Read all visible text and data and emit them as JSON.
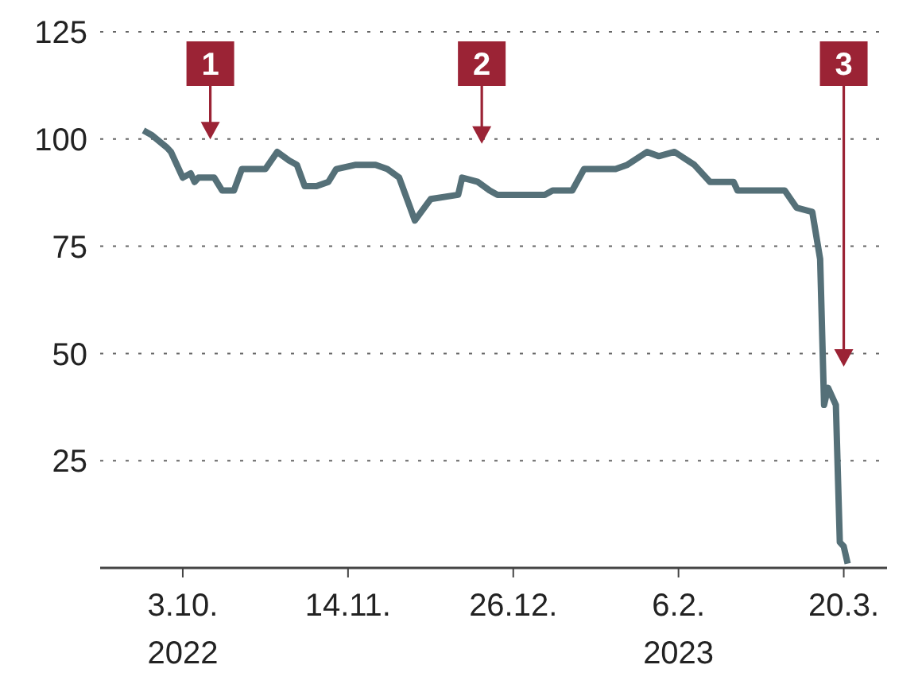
{
  "chart_data": {
    "type": "line",
    "x": [
      "2022-09-23",
      "2022-09-25",
      "2022-09-29",
      "2022-09-30",
      "2022-10-03",
      "2022-10-05",
      "2022-10-06",
      "2022-10-07",
      "2022-10-11",
      "2022-10-13",
      "2022-10-16",
      "2022-10-18",
      "2022-10-24",
      "2022-10-27",
      "2022-10-30",
      "2022-11-01",
      "2022-11-03",
      "2022-11-06",
      "2022-11-09",
      "2022-11-11",
      "2022-11-16",
      "2022-11-18",
      "2022-11-21",
      "2022-11-24",
      "2022-11-27",
      "2022-12-01",
      "2022-12-05",
      "2022-12-12",
      "2022-12-13",
      "2022-12-17",
      "2022-12-20",
      "2022-12-22",
      "2022-12-25",
      "2022-12-29",
      "2023-01-03",
      "2023-01-05",
      "2023-01-10",
      "2023-01-13",
      "2023-01-21",
      "2023-01-24",
      "2023-01-29",
      "2023-02-01",
      "2023-02-05",
      "2023-02-10",
      "2023-02-14",
      "2023-02-20",
      "2023-02-21",
      "2023-03-05",
      "2023-03-08",
      "2023-03-12",
      "2023-03-14",
      "2023-03-15",
      "2023-03-16",
      "2023-03-18",
      "2023-03-19",
      "2023-03-20",
      "2023-03-21"
    ],
    "series": [
      {
        "color": "#557078",
        "values": [
          102,
          101,
          98,
          97,
          91,
          92,
          90,
          91,
          91,
          88,
          88,
          93,
          93,
          97,
          95,
          94,
          89,
          89,
          90,
          93,
          94,
          94,
          94,
          93,
          91,
          81,
          86,
          87,
          91,
          90,
          88,
          87,
          87,
          87,
          87,
          88,
          88,
          93,
          93,
          94,
          97,
          96,
          97,
          94,
          90,
          90,
          88,
          88,
          84,
          83,
          72,
          38,
          42,
          38,
          6,
          5,
          1
        ]
      }
    ],
    "xlim": [
      "2022-09-12",
      "2023-03-31"
    ],
    "xticks": [
      {
        "value": "2022-10-03",
        "label": "3.10.\n2022"
      },
      {
        "value": "2022-11-14",
        "label": "14.11."
      },
      {
        "value": "2022-12-26",
        "label": "26.12."
      },
      {
        "value": "2023-02-06",
        "label": "6.2.\n2023"
      },
      {
        "value": "2023-03-20",
        "label": "20.3."
      }
    ],
    "ylim": [
      0,
      125
    ],
    "yticks": [
      25,
      50,
      75,
      100,
      125
    ],
    "grid": "y",
    "marker": "none",
    "line_style": "solid",
    "ref_lines": [
      {
        "axis": "x",
        "value": "2022-10-10",
        "label": "1",
        "color": "#9b2335"
      },
      {
        "axis": "x",
        "value": "2022-12-18",
        "label": "2",
        "color": "#9b2335"
      },
      {
        "axis": "x",
        "value": "2023-03-20",
        "label": "3",
        "color": "#9b2335"
      }
    ]
  }
}
